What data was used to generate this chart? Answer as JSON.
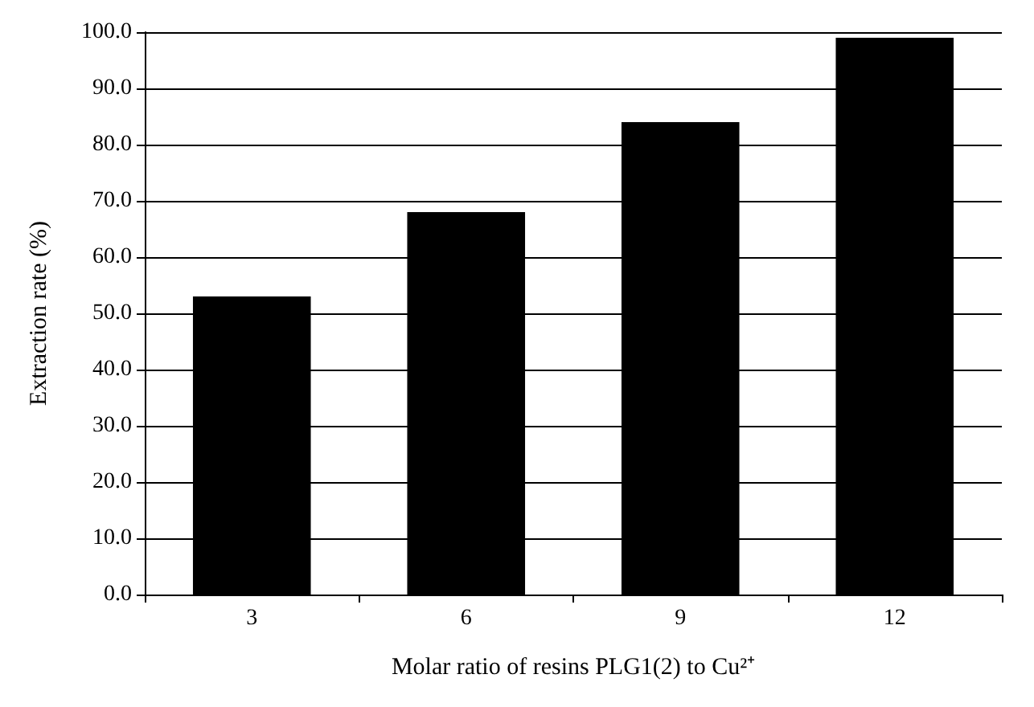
{
  "chart_data": {
    "type": "bar",
    "xlabel": "Molar ratio of resins PLG1(2) to Cu²⁺",
    "ylabel": "Extraction rate (%)",
    "categories": [
      "3",
      "6",
      "9",
      "12"
    ],
    "values": [
      53,
      68,
      84,
      99
    ],
    "color": "#000000",
    "ylim": [
      0,
      100
    ],
    "yticks": [
      {
        "value": 0,
        "label": "0.0"
      },
      {
        "value": 10,
        "label": "10.0"
      },
      {
        "value": 20,
        "label": "20.0"
      },
      {
        "value": 30,
        "label": "30.0"
      },
      {
        "value": 40,
        "label": "40.0"
      },
      {
        "value": 50,
        "label": "50.0"
      },
      {
        "value": 60,
        "label": "60.0"
      },
      {
        "value": 70,
        "label": "70.0"
      },
      {
        "value": 80,
        "label": "80.0"
      },
      {
        "value": 90,
        "label": "90.0"
      },
      {
        "value": 100,
        "label": "100.0"
      }
    ],
    "grid": "y"
  }
}
